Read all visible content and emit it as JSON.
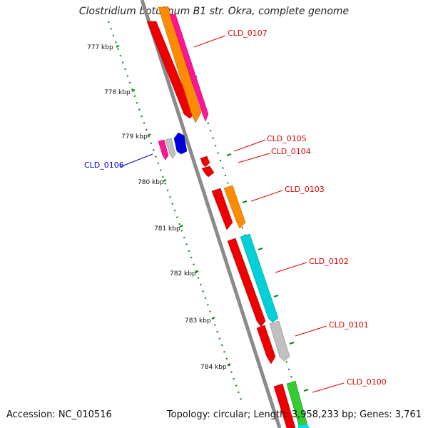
{
  "title": "Clostridium botulinum B1 str. Okra, complete genome",
  "footer": {
    "accession": "Accession: NC_010516",
    "topology": "Topology: circular; Length: 3,958,233 bp; Genes: 3,761"
  },
  "colors": {
    "forward_label": "#dd0000",
    "reverse_label": "#0000cc",
    "backbone": "#888888",
    "ticks": "#118811"
  },
  "ticks": [
    {
      "label": "777 kbp"
    },
    {
      "label": "778 kbp"
    },
    {
      "label": "779 kbp"
    },
    {
      "label": "780 kbp"
    },
    {
      "label": "781 kbp"
    },
    {
      "label": "782 kbp"
    },
    {
      "label": "783 kbp"
    },
    {
      "label": "784 kbp"
    }
  ],
  "gene_labels": [
    {
      "label": "CLD_0107",
      "strand": "forward"
    },
    {
      "label": "CLD_0105",
      "strand": "forward"
    },
    {
      "label": "CLD_0104",
      "strand": "forward"
    },
    {
      "label": "CLD_0103",
      "strand": "forward"
    },
    {
      "label": "CLD_0102",
      "strand": "forward"
    },
    {
      "label": "CLD_0101",
      "strand": "forward"
    },
    {
      "label": "CLD_0100",
      "strand": "forward"
    },
    {
      "label": "CLD_0106",
      "strand": "reverse"
    }
  ]
}
